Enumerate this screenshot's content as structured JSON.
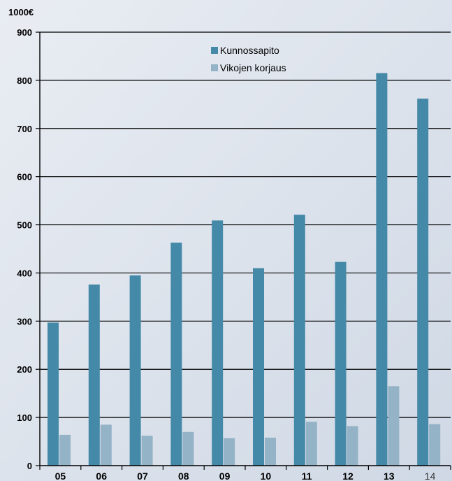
{
  "colors": {
    "kunnossapito": "#4489a8",
    "vikojen_korjaus": "#94b3c7",
    "grid": "#000000",
    "background": "#dfe4ec"
  },
  "chart_data": {
    "type": "bar",
    "unit_label": "1000€",
    "categories": [
      "05",
      "06",
      "07",
      "08",
      "09",
      "10",
      "11",
      "12",
      "13",
      "14"
    ],
    "series": [
      {
        "name": "Kunnossapito",
        "values": [
          297,
          376,
          395,
          463,
          509,
          410,
          521,
          423,
          815,
          762
        ]
      },
      {
        "name": "Vikojen korjaus",
        "values": [
          64,
          85,
          62,
          70,
          57,
          58,
          91,
          82,
          165,
          86
        ]
      }
    ],
    "ylim": [
      0,
      900
    ],
    "yticks": [
      0,
      100,
      200,
      300,
      400,
      500,
      600,
      700,
      800,
      900
    ],
    "grid": true,
    "legend_position": "top-center"
  }
}
